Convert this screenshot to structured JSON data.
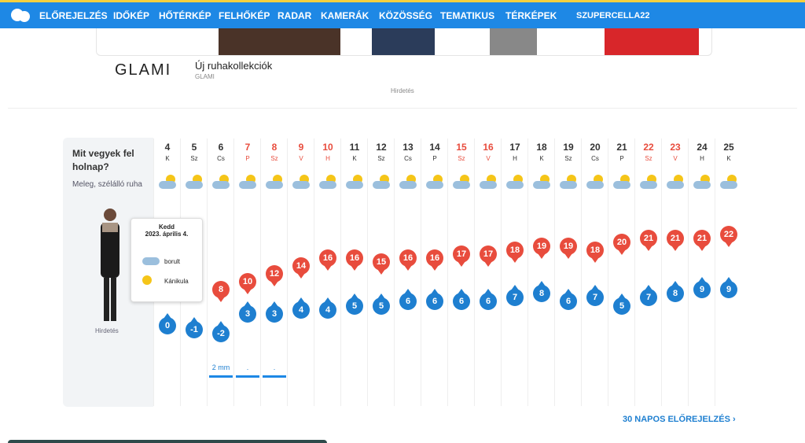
{
  "nav": {
    "items": [
      "ELŐREJELZÉS",
      "IDŐKÉP",
      "HŐTÉRKÉP",
      "FELHŐKÉP",
      "RADAR",
      "KAMERÁK",
      "KÖZÖSSÉG",
      "TEMATIKUS",
      "TÉRKÉPEK"
    ],
    "user": "SZUPERCELLA22"
  },
  "ad": {
    "brand": "GLAMI",
    "title": "Új ruhakollekciók",
    "source": "GLAMI",
    "label": "Hirdetés"
  },
  "panel": {
    "question": "Mit vegyek fel holnap?",
    "advice": "Meleg, szélálló ruha",
    "ad_label": "Hirdetés"
  },
  "tooltip": {
    "day": "Kedd",
    "date": "2023. április 4.",
    "sky": "borult",
    "heat": "Kánikula"
  },
  "forecast": {
    "days": [
      "4",
      "5",
      "6",
      "7",
      "8",
      "9",
      "10",
      "11",
      "12",
      "13",
      "14",
      "15",
      "16",
      "17",
      "18",
      "19",
      "20",
      "21",
      "22",
      "23",
      "24",
      "25"
    ],
    "weekdays": [
      "K",
      "Sz",
      "Cs",
      "P",
      "Sz",
      "V",
      "H",
      "K",
      "Sz",
      "Cs",
      "P",
      "Sz",
      "V",
      "H",
      "K",
      "Sz",
      "Cs",
      "P",
      "Sz",
      "V",
      "H",
      "K"
    ],
    "holiday": [
      false,
      false,
      false,
      true,
      true,
      true,
      true,
      false,
      false,
      false,
      false,
      true,
      true,
      false,
      false,
      false,
      false,
      false,
      true,
      true,
      false,
      false
    ],
    "max": [
      null,
      null,
      "8",
      "10",
      "12",
      "14",
      "16",
      "16",
      "15",
      "16",
      "16",
      "17",
      "17",
      "18",
      "19",
      "19",
      "18",
      "20",
      "21",
      "21",
      "21",
      "22"
    ],
    "min": [
      "0",
      "-1",
      "-2",
      "3",
      "3",
      "4",
      "4",
      "5",
      "5",
      "6",
      "6",
      "6",
      "6",
      "7",
      "8",
      "6",
      "7",
      "5",
      "7",
      "8",
      "9",
      "9"
    ],
    "precip": [
      null,
      null,
      "2 mm",
      ".",
      ".",
      null,
      null,
      null,
      null,
      null,
      null,
      null,
      null,
      null,
      null,
      null,
      null,
      null,
      null,
      null,
      null,
      null
    ]
  },
  "link": "30 NAPOS ELŐREJELZÉS"
}
